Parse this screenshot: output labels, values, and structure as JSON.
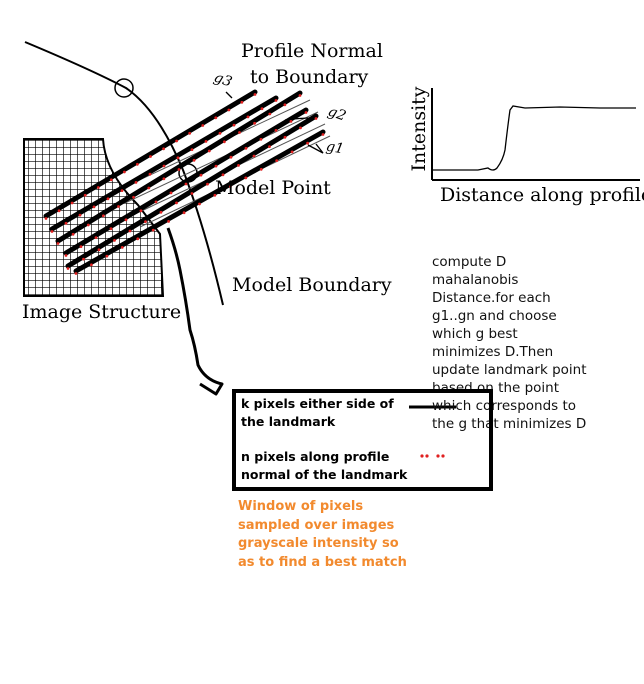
{
  "labels": {
    "profile_normal_line1": "Profile Normal",
    "profile_normal_line2": "to Boundary",
    "model_point": "Model Point",
    "model_boundary": "Model Boundary",
    "image_structure": "Image Structure",
    "intensity_axis": "Intensity",
    "distance_axis": "Distance along profile",
    "g_label_1": "g1",
    "g_label_2": "g2",
    "g_label_3": "g3"
  },
  "note_lines": [
    "compute D",
    "mahalanobis",
    "Distance.for each",
    "g1..gn and choose",
    "which g best",
    "minimizes D.Then",
    "update landmark point",
    "based on the point",
    "which corresponds to",
    "the g that minimizes D"
  ],
  "legend": {
    "k_line1": "k pixels either side of",
    "k_line2": "the landmark",
    "n_line1": "n pixels along profile",
    "n_line2": "normal of the landmark"
  },
  "caption_lines": [
    "Window of pixels",
    "sampled over images",
    "grayscale intensity so",
    "as to find a best match"
  ],
  "colors": {
    "sample_dots": "#e02020",
    "caption": "#f28a2e",
    "lines": "#000000"
  }
}
